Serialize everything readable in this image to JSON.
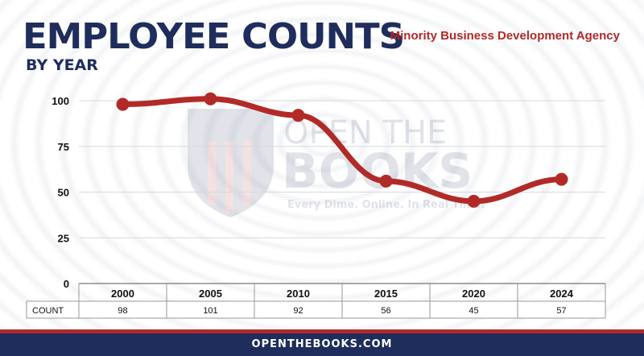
{
  "header": {
    "title": "EMPLOYEE COUNTS",
    "subtitle": "BY YEAR",
    "agency": "Minority Business Development Agency"
  },
  "watermark": {
    "line1": "OPEN THE",
    "line2": "BOOKS",
    "tagline": "Every Dime. Online. In Real Time.",
    "tm": "™",
    "icon": "shield-flag-icon"
  },
  "footer": {
    "text": "OPENTHEBOOKS.COM"
  },
  "colors": {
    "navy": "#1f2d5c",
    "red": "#b12a2a",
    "line": "#b22a27"
  },
  "chart_data": {
    "type": "line",
    "categories": [
      "2000",
      "2005",
      "2010",
      "2015",
      "2020",
      "2024"
    ],
    "values": [
      98,
      101,
      92,
      56,
      45,
      57
    ],
    "ylim": [
      0,
      100
    ],
    "yticks": [
      0,
      25,
      50,
      75,
      100
    ],
    "grid": true,
    "table_row_label": "COUNT",
    "table_values": [
      "98",
      "101",
      "92",
      "56",
      "45",
      "57"
    ]
  }
}
